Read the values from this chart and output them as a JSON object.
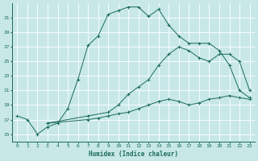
{
  "xlabel": "Humidex (Indice chaleur)",
  "bg_color": "#c8e8e8",
  "grid_color": "#ffffff",
  "line_color": "#1a6b5a",
  "xlim": [
    -0.5,
    23.5
  ],
  "ylim": [
    14,
    33
  ],
  "xticks": [
    0,
    1,
    2,
    3,
    4,
    5,
    6,
    7,
    8,
    9,
    10,
    11,
    12,
    13,
    14,
    15,
    16,
    17,
    18,
    19,
    20,
    21,
    22,
    23
  ],
  "yticks": [
    15,
    17,
    19,
    21,
    23,
    25,
    27,
    29,
    31
  ],
  "curve1_x": [
    0,
    1,
    2,
    3,
    4,
    5,
    6,
    7,
    8,
    9,
    10,
    11,
    12,
    13,
    14,
    15,
    16,
    17,
    18,
    19,
    20,
    21,
    22,
    23
  ],
  "curve1_y": [
    17.5,
    17.0,
    15.0,
    16.0,
    16.5,
    18.5,
    22.5,
    27.2,
    28.5,
    31.5,
    32.0,
    32.5,
    32.5,
    31.2,
    32.2,
    30.0,
    28.5,
    27.5,
    27.5,
    27.5,
    26.5,
    24.5,
    21.0,
    20.0
  ],
  "curve2_x": [
    3,
    7,
    9,
    10,
    11,
    12,
    13,
    14,
    15,
    16,
    17,
    18,
    19,
    20,
    21,
    22,
    23
  ],
  "curve2_y": [
    16.5,
    17.5,
    18.0,
    19.0,
    20.5,
    21.5,
    22.5,
    24.5,
    26.0,
    27.0,
    26.5,
    25.5,
    25.0,
    26.0,
    26.0,
    25.0,
    21.0
  ],
  "curve3_x": [
    3,
    7,
    8,
    9,
    10,
    11,
    12,
    13,
    14,
    15,
    16,
    17,
    18,
    19,
    20,
    21,
    22,
    23
  ],
  "curve3_y": [
    16.5,
    17.0,
    17.2,
    17.5,
    17.8,
    18.0,
    18.5,
    19.0,
    19.5,
    19.8,
    19.5,
    19.0,
    19.3,
    19.8,
    20.0,
    20.3,
    20.0,
    19.8
  ]
}
